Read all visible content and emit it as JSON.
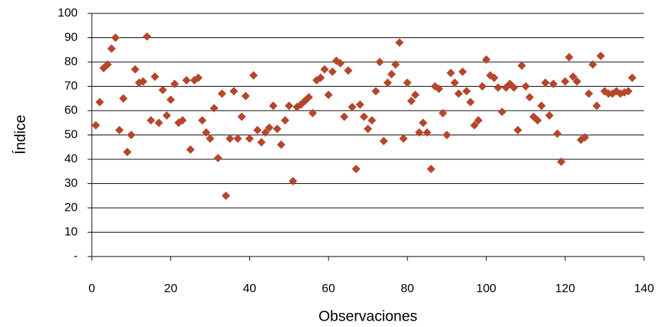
{
  "chart_data": {
    "type": "scatter",
    "x_label": "Observaciones",
    "y_label": "Índice",
    "color": "#b5462b",
    "grid": true,
    "xlim": [
      0,
      140
    ],
    "xticks": [
      0,
      20,
      40,
      60,
      80,
      100,
      120,
      140
    ],
    "ylim": [
      0,
      100
    ],
    "yticks": [
      {
        "value": 0,
        "label": "-"
      },
      10,
      20,
      30,
      40,
      50,
      60,
      70,
      80,
      90,
      100
    ],
    "x": [
      1,
      2,
      3,
      4,
      5,
      6,
      7,
      8,
      9,
      10,
      11,
      12,
      13,
      14,
      15,
      16,
      17,
      18,
      19,
      20,
      21,
      22,
      23,
      24,
      25,
      26,
      27,
      28,
      29,
      30,
      31,
      32,
      33,
      34,
      35,
      36,
      37,
      38,
      39,
      40,
      41,
      42,
      43,
      44,
      45,
      46,
      47,
      48,
      49,
      50,
      51,
      52,
      53,
      54,
      55,
      56,
      57,
      58,
      59,
      60,
      61,
      62,
      63,
      64,
      65,
      66,
      67,
      68,
      69,
      70,
      71,
      72,
      73,
      74,
      75,
      76,
      77,
      78,
      79,
      80,
      81,
      82,
      83,
      84,
      85,
      86,
      87,
      88,
      89,
      90,
      91,
      92,
      93,
      94,
      95,
      96,
      97,
      98,
      99,
      100,
      101,
      102,
      103,
      104,
      105,
      106,
      107,
      108,
      109,
      110,
      111,
      112,
      113,
      114,
      115,
      116,
      117,
      118,
      119,
      120,
      121,
      122,
      123,
      124,
      125,
      126,
      127,
      128,
      129,
      130,
      131,
      132,
      133,
      134,
      135,
      136,
      137
    ],
    "values": [
      54,
      63.5,
      77.5,
      79,
      85.5,
      90,
      52,
      65,
      43,
      50,
      77,
      71.5,
      72,
      90.5,
      56,
      74,
      55,
      68.5,
      58,
      64.5,
      71,
      55,
      56,
      72.5,
      44,
      72.5,
      73.5,
      56,
      51,
      48.5,
      61,
      40.5,
      67,
      25,
      48.5,
      68,
      48.5,
      57.5,
      66,
      48.5,
      74.5,
      52,
      47,
      51,
      53,
      62,
      52.5,
      46,
      56,
      62,
      31,
      61.5,
      62.5,
      64,
      65.5,
      59,
      72.5,
      73.5,
      77,
      66.5,
      76,
      80.5,
      79.5,
      57.5,
      76.5,
      61.5,
      36,
      62.5,
      57.5,
      52.5,
      56,
      68,
      80,
      47.5,
      71.5,
      75,
      79,
      88,
      48.5,
      71.5,
      64,
      66.5,
      51,
      55,
      51,
      36,
      70,
      69,
      59,
      50,
      75.5,
      71.5,
      67,
      76,
      68,
      63.5,
      54,
      56,
      70,
      81,
      74.5,
      73.5,
      69.5,
      59.5,
      69.5,
      71,
      69.5,
      52,
      78.5,
      70,
      65.5,
      57.5,
      56,
      62,
      71.5,
      58,
      71,
      50.5,
      39,
      72,
      82,
      74,
      72,
      48,
      49,
      67,
      79,
      62,
      82.5,
      68,
      67,
      67,
      68,
      67,
      67.5,
      68,
      73.5
    ]
  }
}
